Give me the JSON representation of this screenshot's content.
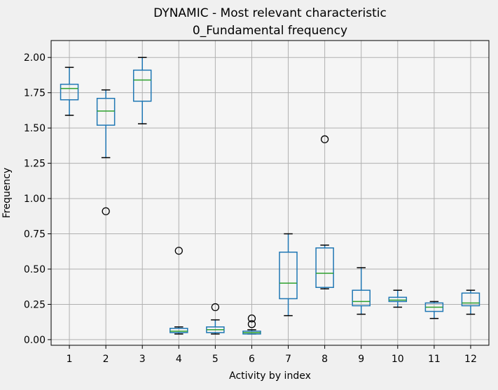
{
  "chart_data": {
    "type": "box",
    "title": "DYNAMIC - Most relevant characteristic",
    "subtitle": "0_Fundamental frequency",
    "xlabel": "Activity by index",
    "ylabel": "Frequency",
    "ylim": [
      -0.04,
      2.12
    ],
    "yticks": [
      0.0,
      0.25,
      0.5,
      0.75,
      1.0,
      1.25,
      1.5,
      1.75,
      2.0
    ],
    "ytick_labels": [
      "0.00",
      "0.25",
      "0.50",
      "0.75",
      "1.00",
      "1.25",
      "1.50",
      "1.75",
      "2.00"
    ],
    "grid": true,
    "categories": [
      "1",
      "2",
      "3",
      "4",
      "5",
      "6",
      "7",
      "8",
      "9",
      "10",
      "11",
      "12"
    ],
    "boxes": [
      {
        "category": "1",
        "whisker_low": 1.59,
        "q1": 1.7,
        "median": 1.78,
        "q3": 1.81,
        "whisker_high": 1.93,
        "outliers": []
      },
      {
        "category": "2",
        "whisker_low": 1.29,
        "q1": 1.52,
        "median": 1.62,
        "q3": 1.71,
        "whisker_high": 1.77,
        "outliers": [
          0.91
        ]
      },
      {
        "category": "3",
        "whisker_low": 1.53,
        "q1": 1.69,
        "median": 1.84,
        "q3": 1.91,
        "whisker_high": 2.0,
        "outliers": []
      },
      {
        "category": "4",
        "whisker_low": 0.04,
        "q1": 0.05,
        "median": 0.06,
        "q3": 0.08,
        "whisker_high": 0.09,
        "outliers": [
          0.63
        ]
      },
      {
        "category": "5",
        "whisker_low": 0.04,
        "q1": 0.05,
        "median": 0.07,
        "q3": 0.09,
        "whisker_high": 0.14,
        "outliers": [
          0.23
        ]
      },
      {
        "category": "6",
        "whisker_low": 0.04,
        "q1": 0.04,
        "median": 0.05,
        "q3": 0.06,
        "whisker_high": 0.07,
        "outliers": [
          0.11,
          0.15
        ]
      },
      {
        "category": "7",
        "whisker_low": 0.17,
        "q1": 0.29,
        "median": 0.4,
        "q3": 0.62,
        "whisker_high": 0.75,
        "outliers": []
      },
      {
        "category": "8",
        "whisker_low": 0.36,
        "q1": 0.37,
        "median": 0.47,
        "q3": 0.65,
        "whisker_high": 0.67,
        "outliers": [
          1.42
        ]
      },
      {
        "category": "9",
        "whisker_low": 0.18,
        "q1": 0.24,
        "median": 0.27,
        "q3": 0.35,
        "whisker_high": 0.51,
        "outliers": []
      },
      {
        "category": "10",
        "whisker_low": 0.23,
        "q1": 0.27,
        "median": 0.28,
        "q3": 0.3,
        "whisker_high": 0.35,
        "outliers": []
      },
      {
        "category": "11",
        "whisker_low": 0.15,
        "q1": 0.2,
        "median": 0.23,
        "q3": 0.26,
        "whisker_high": 0.27,
        "outliers": []
      },
      {
        "category": "12",
        "whisker_low": 0.18,
        "q1": 0.24,
        "median": 0.26,
        "q3": 0.33,
        "whisker_high": 0.35,
        "outliers": []
      }
    ],
    "colors": {
      "box": "#1f77b4",
      "median": "#2ca02c",
      "grid": "#b0b0b0",
      "axes": "#000000",
      "plot_background": "#f5f5f5"
    }
  }
}
